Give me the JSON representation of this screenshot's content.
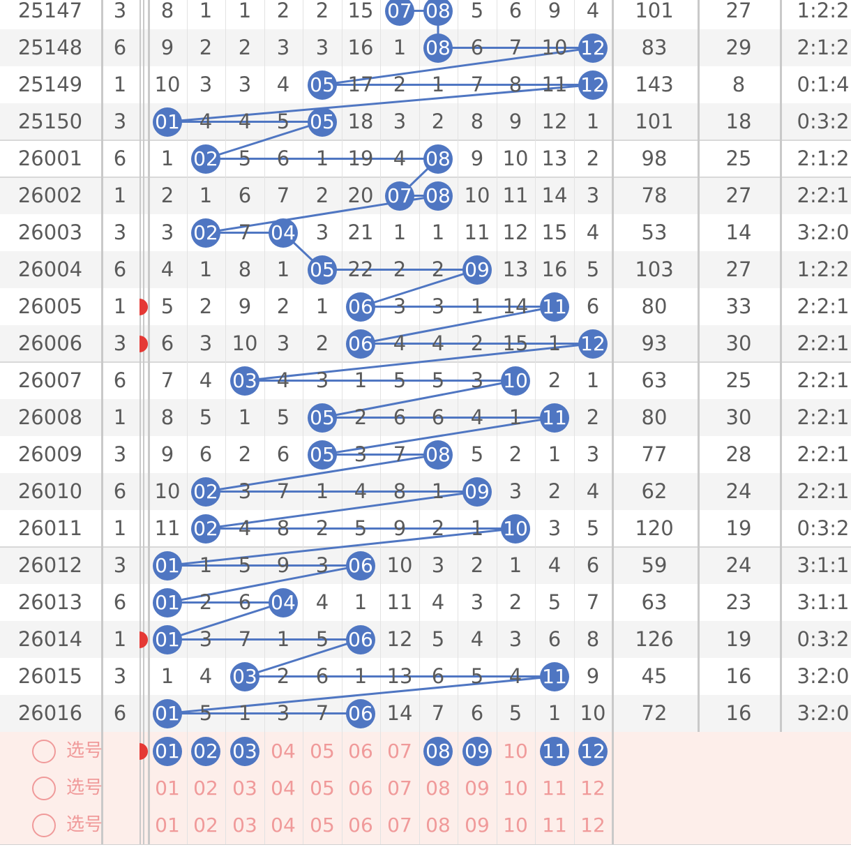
{
  "colors": {
    "ball": "#4f76c2",
    "select_text": "#f09a9a",
    "select_bg": "#fdeeea",
    "alt_row": "#f4f4f4",
    "marker": "#e53935"
  },
  "rows": [
    {
      "period": "25147",
      "n": "3",
      "values": [
        "8",
        "1",
        "1",
        "2",
        "2",
        "15",
        "07",
        "08",
        "5",
        "6",
        "9",
        "4"
      ],
      "balls": [
        6,
        7
      ],
      "sum": "101",
      "span": "27",
      "ratio": "1:2:2"
    },
    {
      "period": "25148",
      "n": "6",
      "values": [
        "9",
        "2",
        "2",
        "3",
        "3",
        "16",
        "1",
        "08",
        "6",
        "7",
        "10",
        "12"
      ],
      "balls": [
        7,
        11
      ],
      "sum": "83",
      "span": "29",
      "ratio": "2:1:2"
    },
    {
      "period": "25149",
      "n": "1",
      "values": [
        "10",
        "3",
        "3",
        "4",
        "05",
        "17",
        "2",
        "1",
        "7",
        "8",
        "11",
        "12"
      ],
      "balls": [
        4,
        11
      ],
      "sum": "143",
      "span": "8",
      "ratio": "0:1:4"
    },
    {
      "period": "25150",
      "n": "3",
      "values": [
        "01",
        "4",
        "4",
        "5",
        "05",
        "18",
        "3",
        "2",
        "8",
        "9",
        "12",
        "1"
      ],
      "balls": [
        0,
        4
      ],
      "sum": "101",
      "span": "18",
      "ratio": "0:3:2"
    },
    {
      "period": "26001",
      "n": "6",
      "values": [
        "1",
        "02",
        "5",
        "6",
        "1",
        "19",
        "4",
        "08",
        "9",
        "10",
        "13",
        "2"
      ],
      "balls": [
        1,
        7
      ],
      "sum": "98",
      "span": "25",
      "ratio": "2:1:2"
    },
    {
      "period": "26002",
      "n": "1",
      "values": [
        "2",
        "1",
        "6",
        "7",
        "2",
        "20",
        "07",
        "08",
        "10",
        "11",
        "14",
        "3"
      ],
      "balls": [
        6,
        7
      ],
      "sum": "78",
      "span": "27",
      "ratio": "2:2:1"
    },
    {
      "period": "26003",
      "n": "3",
      "values": [
        "3",
        "02",
        "7",
        "04",
        "3",
        "21",
        "1",
        "1",
        "11",
        "12",
        "15",
        "4"
      ],
      "balls": [
        1,
        3
      ],
      "sum": "53",
      "span": "14",
      "ratio": "3:2:0"
    },
    {
      "period": "26004",
      "n": "6",
      "values": [
        "4",
        "1",
        "8",
        "1",
        "05",
        "22",
        "2",
        "2",
        "09",
        "13",
        "16",
        "5"
      ],
      "balls": [
        4,
        8
      ],
      "sum": "103",
      "span": "27",
      "ratio": "1:2:2"
    },
    {
      "period": "26005",
      "n": "1",
      "values": [
        "5",
        "2",
        "9",
        "2",
        "1",
        "06",
        "3",
        "3",
        "1",
        "14",
        "11",
        "6"
      ],
      "balls": [
        5,
        10
      ],
      "sum": "80",
      "span": "33",
      "ratio": "2:2:1"
    },
    {
      "period": "26006",
      "n": "3",
      "values": [
        "6",
        "3",
        "10",
        "3",
        "2",
        "06",
        "4",
        "4",
        "2",
        "15",
        "1",
        "12"
      ],
      "balls": [
        5,
        11
      ],
      "sum": "93",
      "span": "30",
      "ratio": "2:2:1"
    },
    {
      "period": "26007",
      "n": "6",
      "values": [
        "7",
        "4",
        "03",
        "4",
        "3",
        "1",
        "5",
        "5",
        "3",
        "10",
        "2",
        "1"
      ],
      "balls": [
        2,
        9
      ],
      "sum": "63",
      "span": "25",
      "ratio": "2:2:1"
    },
    {
      "period": "26008",
      "n": "1",
      "values": [
        "8",
        "5",
        "1",
        "5",
        "05",
        "2",
        "6",
        "6",
        "4",
        "1",
        "11",
        "2"
      ],
      "balls": [
        4,
        10
      ],
      "sum": "80",
      "span": "30",
      "ratio": "2:2:1"
    },
    {
      "period": "26009",
      "n": "3",
      "values": [
        "9",
        "6",
        "2",
        "6",
        "05",
        "3",
        "7",
        "08",
        "5",
        "2",
        "1",
        "3"
      ],
      "balls": [
        4,
        7
      ],
      "sum": "77",
      "span": "28",
      "ratio": "2:2:1"
    },
    {
      "period": "26010",
      "n": "6",
      "values": [
        "10",
        "02",
        "3",
        "7",
        "1",
        "4",
        "8",
        "1",
        "09",
        "3",
        "2",
        "4"
      ],
      "balls": [
        1,
        8
      ],
      "sum": "62",
      "span": "24",
      "ratio": "2:2:1"
    },
    {
      "period": "26011",
      "n": "1",
      "values": [
        "11",
        "02",
        "4",
        "8",
        "2",
        "5",
        "9",
        "2",
        "1",
        "10",
        "3",
        "5"
      ],
      "balls": [
        1,
        9
      ],
      "sum": "120",
      "span": "19",
      "ratio": "0:3:2"
    },
    {
      "period": "26012",
      "n": "3",
      "values": [
        "01",
        "1",
        "5",
        "9",
        "3",
        "06",
        "10",
        "3",
        "2",
        "1",
        "4",
        "6"
      ],
      "balls": [
        0,
        5
      ],
      "sum": "59",
      "span": "24",
      "ratio": "3:1:1"
    },
    {
      "period": "26013",
      "n": "6",
      "values": [
        "01",
        "2",
        "6",
        "04",
        "4",
        "1",
        "11",
        "4",
        "3",
        "2",
        "5",
        "7"
      ],
      "balls": [
        0,
        3
      ],
      "sum": "63",
      "span": "23",
      "ratio": "3:1:1"
    },
    {
      "period": "26014",
      "n": "1",
      "values": [
        "01",
        "3",
        "7",
        "1",
        "5",
        "06",
        "12",
        "5",
        "4",
        "3",
        "6",
        "8"
      ],
      "balls": [
        0,
        5
      ],
      "sum": "126",
      "span": "19",
      "ratio": "0:3:2"
    },
    {
      "period": "26015",
      "n": "3",
      "values": [
        "1",
        "4",
        "03",
        "2",
        "6",
        "1",
        "13",
        "6",
        "5",
        "4",
        "11",
        "9"
      ],
      "balls": [
        2,
        10
      ],
      "sum": "45",
      "span": "16",
      "ratio": "3:2:0"
    },
    {
      "period": "26016",
      "n": "6",
      "values": [
        "01",
        "5",
        "1",
        "3",
        "7",
        "06",
        "14",
        "7",
        "6",
        "5",
        "1",
        "10"
      ],
      "balls": [
        0,
        5
      ],
      "sum": "72",
      "span": "16",
      "ratio": "3:2:0"
    }
  ],
  "red_marker_rows": [
    8,
    9,
    17
  ],
  "select_rows": [
    {
      "label": "选号",
      "numbers": [
        "01",
        "02",
        "03",
        "04",
        "05",
        "06",
        "07",
        "08",
        "09",
        "10",
        "11",
        "12"
      ],
      "selected": [
        0,
        1,
        2,
        7,
        8,
        10,
        11
      ]
    },
    {
      "label": "选号",
      "numbers": [
        "01",
        "02",
        "03",
        "04",
        "05",
        "06",
        "07",
        "08",
        "09",
        "10",
        "11",
        "12"
      ],
      "selected": []
    },
    {
      "label": "选号",
      "numbers": [
        "01",
        "02",
        "03",
        "04",
        "05",
        "06",
        "07",
        "08",
        "09",
        "10",
        "11",
        "12"
      ],
      "selected": []
    }
  ],
  "select_red_marker_rows": [
    0
  ]
}
